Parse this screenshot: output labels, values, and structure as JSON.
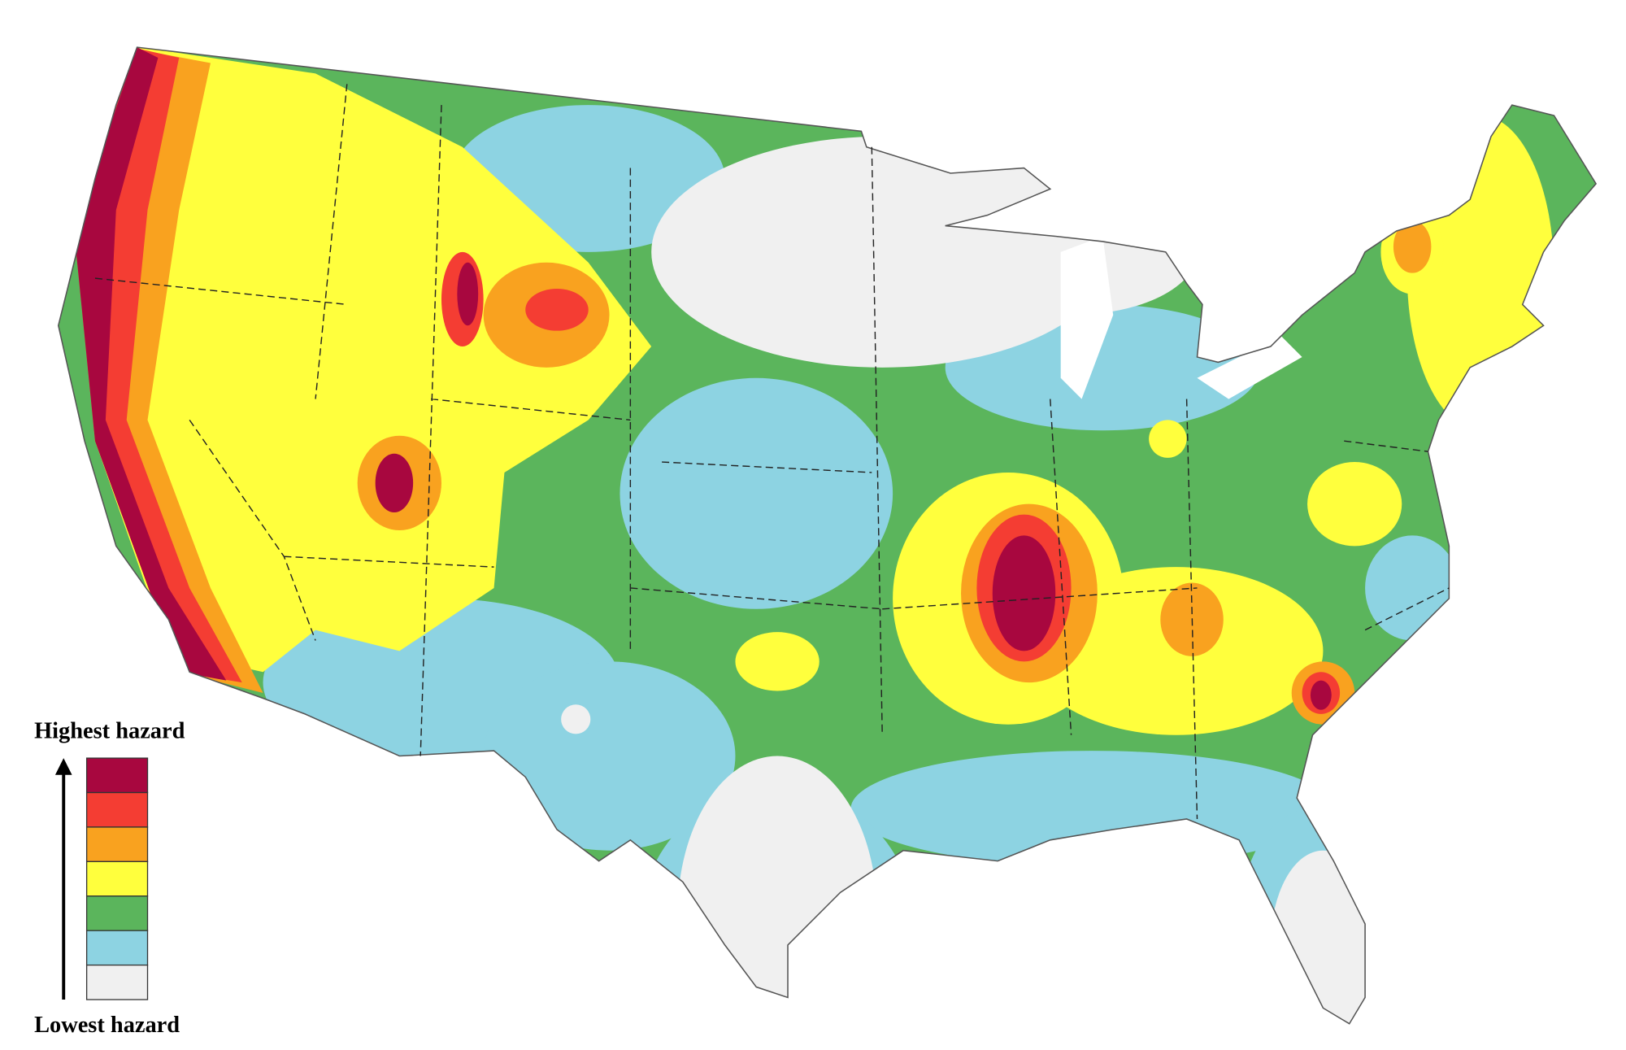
{
  "legend": {
    "high_label": "Highest hazard",
    "low_label": "Lowest hazard",
    "colors": [
      "#a8073f",
      "#f43d33",
      "#f9a21f",
      "#ffff3d",
      "#5bb55c",
      "#8dd3e2",
      "#f0f0f0"
    ]
  }
}
